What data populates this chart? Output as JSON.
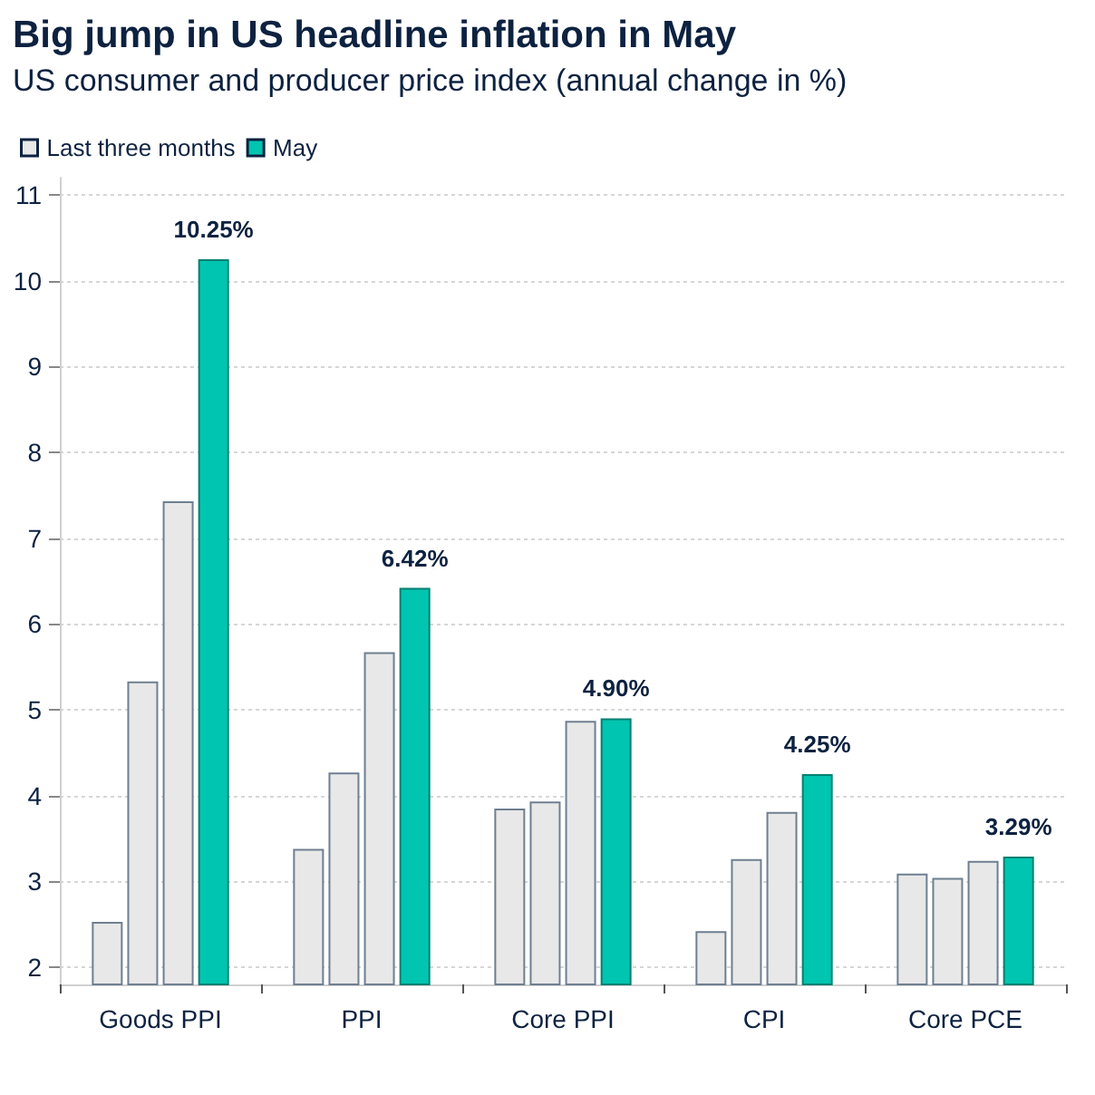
{
  "chart_data": {
    "type": "bar",
    "title": "Big jump in US headline inflation in May",
    "subtitle": "US consumer and producer price index (annual change in %)",
    "categories": [
      "Goods PPI",
      "PPI",
      "Core PPI",
      "CPI",
      "Core PCE"
    ],
    "series": [
      {
        "name": "Last three months",
        "color": "#e8e8e8",
        "values": [
          2.53,
          3.38,
          3.85,
          2.42,
          3.09
        ]
      },
      {
        "color": "#e8e8e8",
        "values": [
          5.33,
          4.27,
          3.93,
          3.26,
          3.04
        ]
      },
      {
        "color": "#e8e8e8",
        "values": [
          7.43,
          5.67,
          4.87,
          3.81,
          3.24
        ]
      },
      {
        "name": "May",
        "color": "#00c5b0",
        "values": [
          10.25,
          6.42,
          4.9,
          4.25,
          3.29
        ],
        "value_labels": [
          "10.25%",
          "6.42%",
          "4.90%",
          "4.25%",
          "3.29%"
        ]
      }
    ],
    "ylim": [
      1.8,
      11.2
    ],
    "yticks": [
      2,
      3,
      4,
      5,
      6,
      7,
      8,
      9,
      10,
      11
    ],
    "grid": "y",
    "legend": "top left"
  }
}
